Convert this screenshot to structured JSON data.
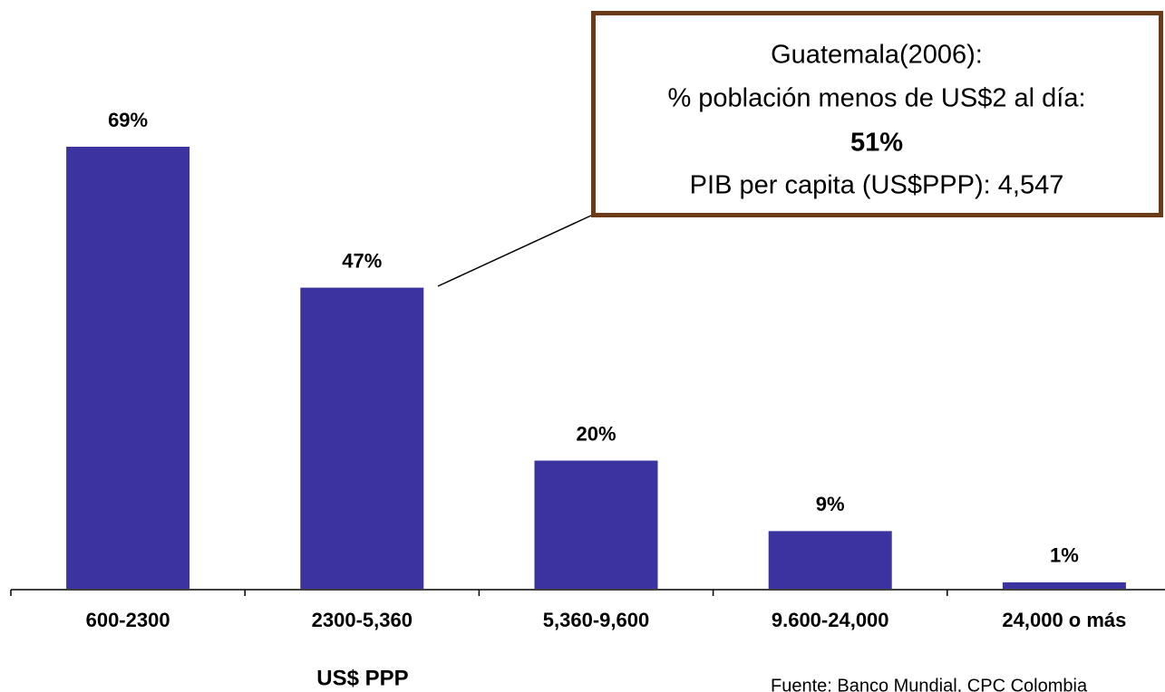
{
  "chart_data": {
    "type": "bar",
    "categories": [
      "600-2300",
      "2300-5,360",
      "5,360-9,600",
      "9.600-24,000",
      "24,000 o más"
    ],
    "values": [
      69,
      47,
      20,
      9,
      1
    ],
    "value_labels": [
      "69%",
      "47%",
      "20%",
      "9%",
      "1%"
    ],
    "color": "#3a33a0",
    "xlabel": "US$ PPP",
    "annotation": [
      "Guatemala(2006):",
      "% población menos de US$2 al día:",
      "51%",
      "PIB per capita (US$PPP): 4,547"
    ],
    "source": "Fuente: Banco Mundial, CPC Colombia"
  }
}
